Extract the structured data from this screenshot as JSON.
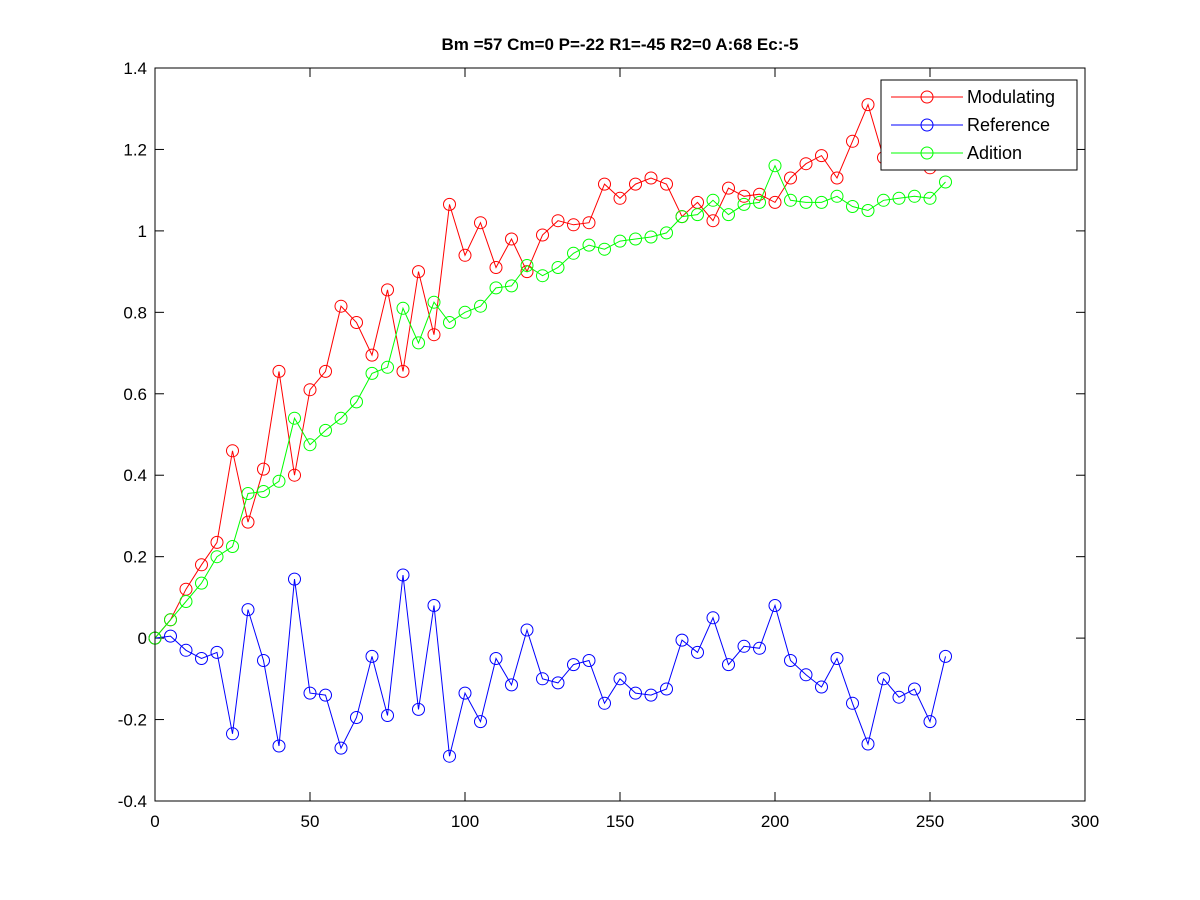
{
  "chart_data": {
    "type": "line",
    "title": "Bm =57  Cm=0  P=-22  R1=-45  R2=0  A:68  Ec:-5",
    "xlabel": "",
    "ylabel": "",
    "xlim": [
      0,
      300
    ],
    "ylim": [
      -0.4,
      1.4
    ],
    "xticks": [
      "0",
      "50",
      "100",
      "150",
      "200",
      "250",
      "300"
    ],
    "yticks": [
      "-0.4",
      "-0.2",
      "0",
      "0.2",
      "0.4",
      "0.6",
      "0.8",
      "1",
      "1.2",
      "1.4"
    ],
    "grid": false,
    "legend_position": "top-right",
    "marker": "circle",
    "x": [
      0,
      5,
      10,
      15,
      20,
      25,
      30,
      35,
      40,
      45,
      50,
      55,
      60,
      65,
      70,
      75,
      80,
      85,
      90,
      95,
      100,
      105,
      110,
      115,
      120,
      125,
      130,
      135,
      140,
      145,
      150,
      155,
      160,
      165,
      170,
      175,
      180,
      185,
      190,
      195,
      200,
      205,
      210,
      215,
      220,
      225,
      230,
      235,
      240,
      245,
      250,
      255
    ],
    "series": [
      {
        "name": "Modulating",
        "color": "#ff0000",
        "values": [
          0,
          0.045,
          0.12,
          0.18,
          0.235,
          0.46,
          0.285,
          0.415,
          0.655,
          0.4,
          0.61,
          0.655,
          0.815,
          0.775,
          0.695,
          0.855,
          0.655,
          0.9,
          0.745,
          1.065,
          0.94,
          1.02,
          0.91,
          0.98,
          0.9,
          0.99,
          1.025,
          1.015,
          1.02,
          1.115,
          1.08,
          1.115,
          1.13,
          1.115,
          1.035,
          1.07,
          1.025,
          1.105,
          1.085,
          1.09,
          1.07,
          1.13,
          1.165,
          1.185,
          1.13,
          1.22,
          1.31,
          1.18,
          1.17,
          1.17,
          1.155,
          1.18
        ]
      },
      {
        "name": "Reference",
        "color": "#0000ff",
        "values": [
          0,
          0.005,
          -0.03,
          -0.05,
          -0.035,
          -0.235,
          0.07,
          -0.055,
          -0.265,
          0.145,
          -0.135,
          -0.14,
          -0.27,
          -0.195,
          -0.045,
          -0.19,
          0.155,
          -0.175,
          0.08,
          -0.29,
          -0.135,
          -0.205,
          -0.05,
          -0.115,
          0.02,
          -0.1,
          -0.11,
          -0.065,
          -0.055,
          -0.16,
          -0.1,
          -0.135,
          -0.14,
          -0.125,
          -0.005,
          -0.035,
          0.05,
          -0.065,
          -0.02,
          -0.025,
          0.08,
          -0.055,
          -0.09,
          -0.12,
          -0.05,
          -0.16,
          -0.26,
          -0.1,
          -0.145,
          -0.125,
          -0.205,
          -0.045
        ]
      },
      {
        "name": "Adition",
        "color": "#00ff00",
        "values": [
          0,
          0.045,
          0.09,
          0.135,
          0.2,
          0.225,
          0.355,
          0.36,
          0.385,
          0.54,
          0.475,
          0.51,
          0.54,
          0.58,
          0.65,
          0.665,
          0.81,
          0.725,
          0.825,
          0.775,
          0.8,
          0.815,
          0.86,
          0.865,
          0.915,
          0.89,
          0.91,
          0.945,
          0.965,
          0.955,
          0.975,
          0.98,
          0.985,
          0.995,
          1.035,
          1.04,
          1.075,
          1.04,
          1.065,
          1.07,
          1.16,
          1.075,
          1.07,
          1.07,
          1.085,
          1.06,
          1.05,
          1.075,
          1.08,
          1.085,
          1.08,
          1.12
        ]
      }
    ]
  }
}
